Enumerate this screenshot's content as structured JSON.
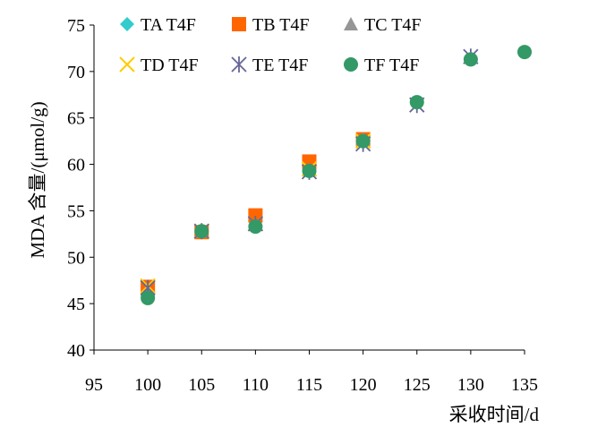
{
  "chart_data": {
    "type": "scatter",
    "title": "",
    "xlabel": "采收时间/d",
    "ylabel": "MDA 含量/(μmol/g)",
    "xlim": [
      95,
      135
    ],
    "ylim": [
      40,
      75
    ],
    "x_ticks": [
      95,
      100,
      105,
      110,
      115,
      120,
      125,
      130,
      135
    ],
    "y_ticks": [
      40,
      45,
      50,
      55,
      60,
      65,
      70,
      75
    ],
    "grid": false,
    "legend": "top-left",
    "series": [
      {
        "name": "TA T4F",
        "marker": "diamond",
        "color": "#33CCCC",
        "x": [
          100,
          105,
          110,
          115,
          120
        ],
        "y": [
          46.2,
          52.7,
          53.3,
          59.5,
          62.6
        ]
      },
      {
        "name": "TB T4F",
        "marker": "square",
        "color": "#FF6600",
        "x": [
          100,
          105,
          110,
          115,
          120
        ],
        "y": [
          46.8,
          52.7,
          54.5,
          60.3,
          62.7
        ]
      },
      {
        "name": "TC T4F",
        "marker": "triangle",
        "color": "#969696",
        "x": [
          100,
          105,
          110,
          115,
          120
        ],
        "y": [
          46.5,
          52.8,
          53.5,
          59.4,
          62.7
        ]
      },
      {
        "name": "TD T4F",
        "marker": "x",
        "color": "#FFCC00",
        "x": [
          100,
          105,
          110,
          115,
          120
        ],
        "y": [
          46.9,
          52.8,
          53.6,
          59.5,
          62.5
        ]
      },
      {
        "name": "TE T4F",
        "marker": "star",
        "color": "#666699",
        "x": [
          100,
          105,
          110,
          115,
          120,
          125,
          130
        ],
        "y": [
          46.7,
          52.8,
          53.6,
          59.2,
          62.2,
          66.4,
          71.6
        ]
      },
      {
        "name": "TF T4F",
        "marker": "circle",
        "color": "#339966",
        "x": [
          100,
          105,
          110,
          115,
          120,
          125,
          130,
          135
        ],
        "y": [
          45.6,
          52.8,
          53.3,
          59.3,
          62.5,
          66.7,
          71.3,
          72.1
        ]
      }
    ]
  }
}
